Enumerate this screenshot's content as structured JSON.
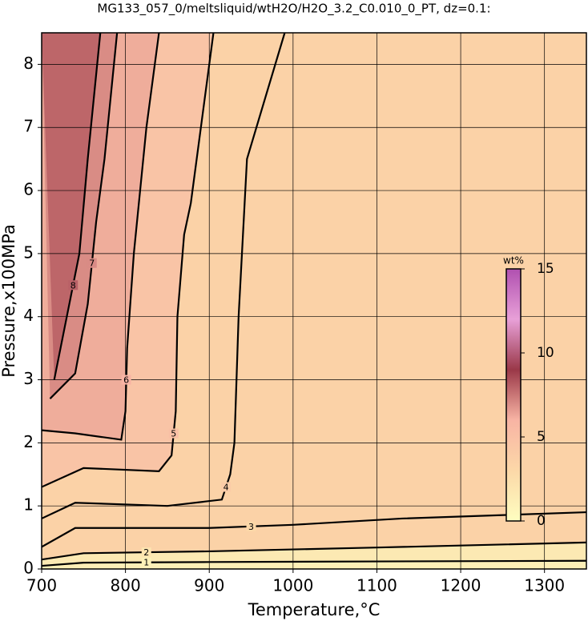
{
  "chart_data": {
    "type": "contour",
    "title": "MG133_057_0/meltsliquid/wtH2O/H2O_3.2_C0.010_0_PT, dz=0.1:",
    "x_label": "Temperature,°C",
    "y_label": "Pressure,x100MPa",
    "xlim": [
      700,
      1350
    ],
    "ylim": [
      0,
      8.5
    ],
    "xticks": [
      700,
      800,
      900,
      1000,
      1100,
      1200,
      1300
    ],
    "yticks": [
      0,
      1,
      2,
      3,
      4,
      5,
      6,
      7,
      8
    ],
    "grid": true,
    "colorbar": {
      "label": "wt%",
      "clim": [
        0,
        15
      ],
      "ticks": [
        0,
        5,
        10,
        15
      ],
      "colormap": [
        "#fefec0",
        "#fcd8a8",
        "#f8b4a4",
        "#9a3848",
        "#e8a0d8",
        "#b050b0"
      ]
    },
    "contours": [
      {
        "level": 1,
        "x": [
          700,
          750,
          900,
          1100,
          1350
        ],
        "y": [
          0.05,
          0.1,
          0.11,
          0.12,
          0.13
        ]
      },
      {
        "level": 2,
        "x": [
          700,
          750,
          900,
          1100,
          1350
        ],
        "y": [
          0.15,
          0.25,
          0.28,
          0.34,
          0.42
        ]
      },
      {
        "level": 3,
        "x": [
          700,
          740,
          900,
          1000,
          1130,
          1350
        ],
        "y": [
          0.35,
          0.65,
          0.65,
          0.7,
          0.8,
          0.9
        ]
      },
      {
        "level": 4,
        "x": [
          700,
          740,
          850,
          915,
          925,
          930,
          935,
          945,
          990
        ],
        "y": [
          0.8,
          1.05,
          1.0,
          1.1,
          1.5,
          2.0,
          4.0,
          6.5,
          8.5
        ]
      },
      {
        "level": 5,
        "x": [
          700,
          750,
          840,
          855,
          860,
          862,
          870,
          878,
          905
        ],
        "y": [
          1.3,
          1.6,
          1.55,
          1.8,
          2.5,
          4.0,
          5.3,
          5.8,
          8.5
        ]
      },
      {
        "level": 6,
        "x": [
          700,
          740,
          795,
          800,
          802,
          810,
          825,
          840
        ],
        "y": [
          2.2,
          2.15,
          2.05,
          2.5,
          3.5,
          5.0,
          7.0,
          8.5
        ]
      },
      {
        "level": 7,
        "x": [
          710,
          740,
          755,
          765,
          775,
          790
        ],
        "y": [
          2.7,
          3.1,
          4.2,
          5.5,
          6.5,
          8.5
        ]
      },
      {
        "level": 8,
        "x": [
          715,
          730,
          745,
          755,
          770
        ],
        "y": [
          3.0,
          4.0,
          5.0,
          6.5,
          8.5
        ]
      }
    ]
  }
}
